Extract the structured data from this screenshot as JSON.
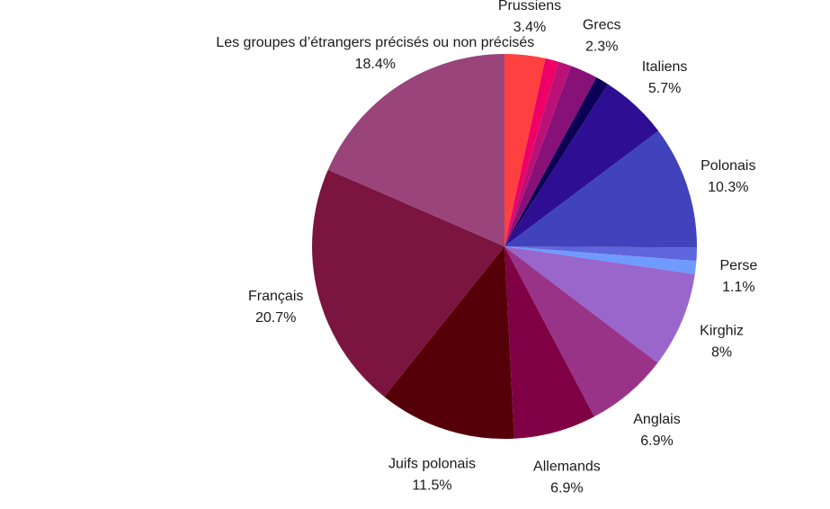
{
  "chart_data": {
    "type": "pie",
    "title": "",
    "start": "12 o'clock",
    "direction": "clockwise",
    "slices": [
      {
        "name": "Prussiens",
        "value": 3.4,
        "value_label": "3.4%",
        "color": "#ff4040",
        "labeled": true
      },
      {
        "name": "",
        "value": 1.1,
        "value_label": "",
        "color": "#ee0066",
        "labeled": false
      },
      {
        "name": "",
        "value": 1.1,
        "value_label": "",
        "color": "#bb1177",
        "labeled": false
      },
      {
        "name": "Grecs",
        "value": 2.3,
        "value_label": "2.3%",
        "color": "#881177",
        "labeled": true
      },
      {
        "name": "",
        "value": 1.1,
        "value_label": "",
        "color": "#0b0055",
        "labeled": false
      },
      {
        "name": "Italiens",
        "value": 5.7,
        "value_label": "5.7%",
        "color": "#2e0f93",
        "labeled": true
      },
      {
        "name": "Polonais",
        "value": 10.3,
        "value_label": "10.3%",
        "color": "#4043bb",
        "labeled": true
      },
      {
        "name": "",
        "value": 1.1,
        "value_label": "",
        "color": "#5f66dd",
        "labeled": false
      },
      {
        "name": "Perse",
        "value": 1.1,
        "value_label": "1.1%",
        "color": "#6f9bff",
        "labeled": true
      },
      {
        "name": "Kirghiz",
        "value": 8,
        "value_label": "8%",
        "color": "#9966cc",
        "labeled": true
      },
      {
        "name": "Anglais",
        "value": 6.9,
        "value_label": "6.9%",
        "color": "#993388",
        "labeled": true
      },
      {
        "name": "Allemands",
        "value": 6.9,
        "value_label": "6.9%",
        "color": "#7f0044",
        "labeled": true
      },
      {
        "name": "Juifs polonais",
        "value": 11.5,
        "value_label": "11.5%",
        "color": "#550008",
        "labeled": true
      },
      {
        "name": "Français",
        "value": 20.7,
        "value_label": "20.7%",
        "color": "#7b143e",
        "labeled": true
      },
      {
        "name": "Les groupes d’étrangers précisés ou non précisés",
        "value": 18.4,
        "value_label": "18.4%",
        "color": "#99447a",
        "labeled": true
      }
    ]
  }
}
